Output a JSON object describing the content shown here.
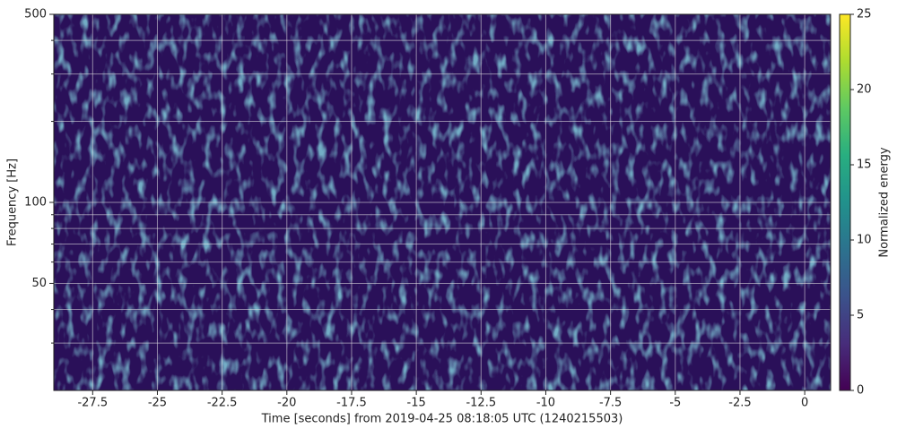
{
  "chart_data": {
    "type": "spectrogram",
    "x_label": "Time [seconds] from 2019-04-25 08:18:05 UTC (1240215503)",
    "y_label": "Frequency [Hz]",
    "colorbar_label": "Normalized energy",
    "colormap": "viridis",
    "xlim": [
      -29,
      1
    ],
    "xticks": [
      -27.5,
      -25,
      -22.5,
      -20,
      -17.5,
      -15,
      -12.5,
      -10,
      -7.5,
      -5,
      -2.5,
      0
    ],
    "ylim": [
      20,
      500
    ],
    "yscale": "log",
    "yticks": [
      50,
      100,
      500
    ],
    "yminorticks": [
      30,
      40,
      60,
      70,
      80,
      90,
      200,
      300,
      400
    ],
    "clim": [
      0,
      25
    ],
    "cticks": [
      0,
      5,
      10,
      15,
      20,
      25
    ],
    "grid": true
  }
}
